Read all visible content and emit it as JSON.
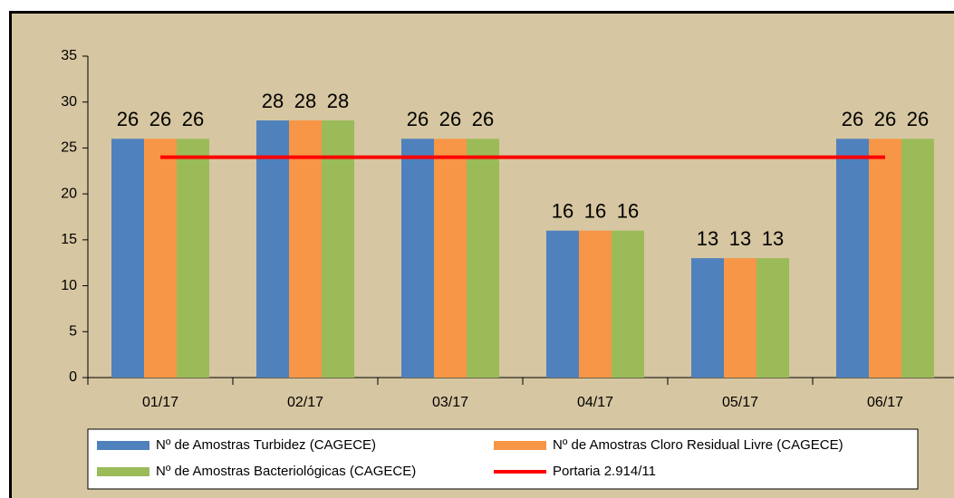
{
  "chart_data": {
    "type": "bar",
    "categories": [
      "01/17",
      "02/17",
      "03/17",
      "04/17",
      "05/17",
      "06/17"
    ],
    "series": [
      {
        "name": "Nº de Amostras Turbidez (CAGECE)",
        "color": "#4f81bd",
        "values": [
          26,
          28,
          26,
          16,
          13,
          26
        ]
      },
      {
        "name": "Nº de Amostras Cloro Residual Livre (CAGECE)",
        "color": "#f79646",
        "values": [
          26,
          28,
          26,
          16,
          13,
          26
        ]
      },
      {
        "name": "Nº de Amostras Bacteriológicas (CAGECE)",
        "color": "#9bbb59",
        "values": [
          26,
          28,
          26,
          16,
          13,
          26
        ]
      },
      {
        "name": "Portaria 2.914/11",
        "color": "#ff0000",
        "type": "line",
        "values": [
          24,
          24,
          24,
          24,
          24,
          24
        ]
      }
    ],
    "ylim": [
      0,
      35
    ],
    "yticks": [
      0,
      5,
      10,
      15,
      20,
      25,
      30,
      35
    ],
    "grid": false,
    "data_labels": true
  }
}
